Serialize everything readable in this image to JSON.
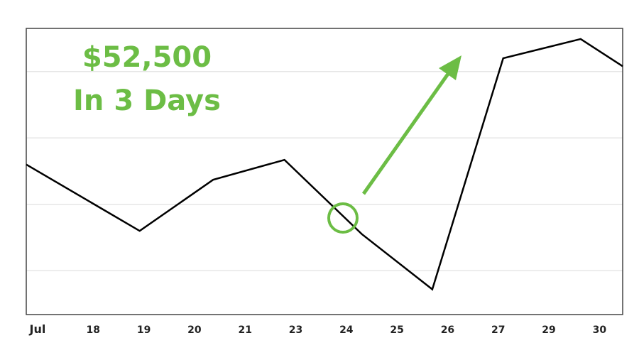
{
  "chart_data": {
    "type": "line",
    "annotations": [
      "$52,500",
      "In 3 Days"
    ],
    "x": [
      -0.21,
      2.03,
      3.48,
      4.89,
      6.42,
      7.81,
      9.21,
      10.74,
      11.57
    ],
    "series": [
      {
        "color": "#000000",
        "values": [
          26.0,
          16.0,
          23.7,
          26.7,
          15.5,
          7.2,
          42.0,
          44.9,
          40.8
        ]
      }
    ],
    "xlim": [
      -0.21,
      11.57
    ],
    "xticks": [
      {
        "value": 0,
        "label": "Jul"
      },
      {
        "value": 1,
        "label": "18"
      },
      {
        "value": 2,
        "label": "19"
      },
      {
        "value": 3,
        "label": "20"
      },
      {
        "value": 4,
        "label": "21"
      },
      {
        "value": 5,
        "label": "23"
      },
      {
        "value": 6,
        "label": "24"
      },
      {
        "value": 7,
        "label": "25"
      },
      {
        "value": 8,
        "label": "26"
      },
      {
        "value": 9,
        "label": "27"
      },
      {
        "value": 10,
        "label": "29"
      },
      {
        "value": 11,
        "label": "30"
      }
    ],
    "ylim": [
      3.4,
      46.5
    ],
    "yticks": [
      10,
      20,
      30,
      40
    ],
    "grid": true,
    "annotation_color": "#6cbd45"
  }
}
